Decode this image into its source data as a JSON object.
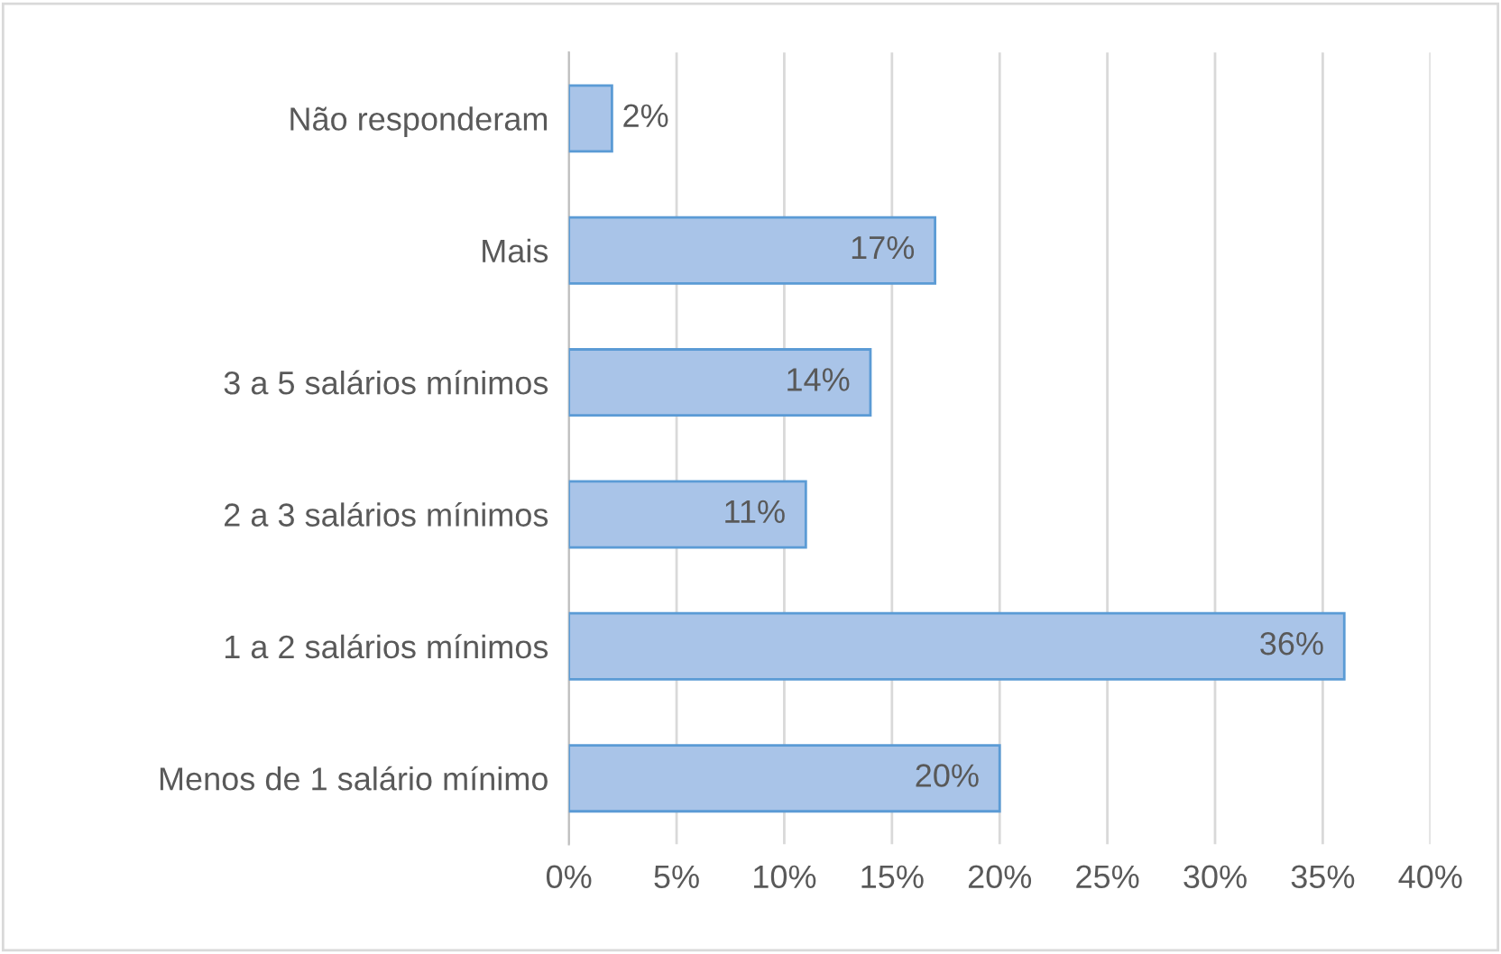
{
  "chart_data": {
    "type": "bar",
    "orientation": "horizontal",
    "categories": [
      "Não responderam",
      "Mais",
      "3 a 5 salários mínimos",
      "2 a 3 salários mínimos",
      "1 a 2 salários mínimos",
      "Menos de 1 salário mínimo"
    ],
    "values": [
      2,
      17,
      14,
      11,
      36,
      20
    ],
    "value_labels": [
      "2%",
      "17%",
      "14%",
      "11%",
      "36%",
      "20%"
    ],
    "color": "#a9c4e8",
    "xlim": [
      0,
      40
    ],
    "xticks": [
      {
        "value": 0,
        "label": "0%"
      },
      {
        "value": 5,
        "label": "5%"
      },
      {
        "value": 10,
        "label": "10%"
      },
      {
        "value": 15,
        "label": "15%"
      },
      {
        "value": 20,
        "label": "20%"
      },
      {
        "value": 25,
        "label": "25%"
      },
      {
        "value": 30,
        "label": "30%"
      },
      {
        "value": 35,
        "label": "35%"
      },
      {
        "value": 40,
        "label": "40%"
      }
    ],
    "grid": "x",
    "legend": false
  }
}
